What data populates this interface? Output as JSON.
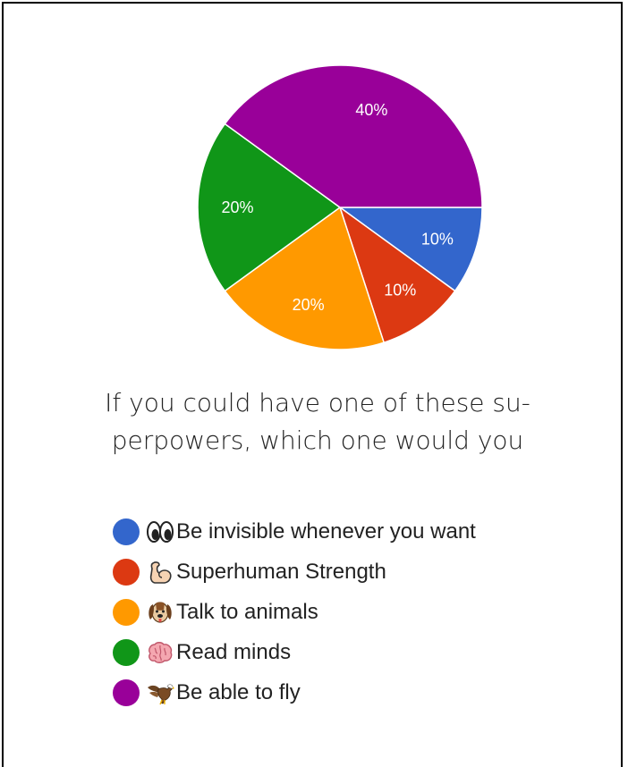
{
  "chart_data": {
    "type": "pie",
    "title_lines": [
      "If you could have one of these su-",
      "perpowers, which one would you"
    ],
    "slices": [
      {
        "label": "Be invisible whenever you want",
        "emoji": "👀",
        "icon": "eyes-icon",
        "value": 10,
        "value_label": "10%",
        "color": "#3366cc"
      },
      {
        "label": "Superhuman Strength",
        "emoji": "💪",
        "icon": "flexed-biceps-icon",
        "value": 10,
        "value_label": "10%",
        "color": "#dc3912"
      },
      {
        "label": "Talk to animals",
        "emoji": "🐶",
        "icon": "dog-face-icon",
        "value": 20,
        "value_label": "20%",
        "color": "#ff9900"
      },
      {
        "label": "Read minds",
        "emoji": "🧠",
        "icon": "brain-icon",
        "value": 20,
        "value_label": "20%",
        "color": "#109618"
      },
      {
        "label": "Be able to fly",
        "emoji": "🦅",
        "icon": "eagle-icon",
        "value": 40,
        "value_label": "40%",
        "color": "#990099"
      }
    ],
    "slice_border_color": "#ffffff",
    "legend_placement": "bottom"
  }
}
